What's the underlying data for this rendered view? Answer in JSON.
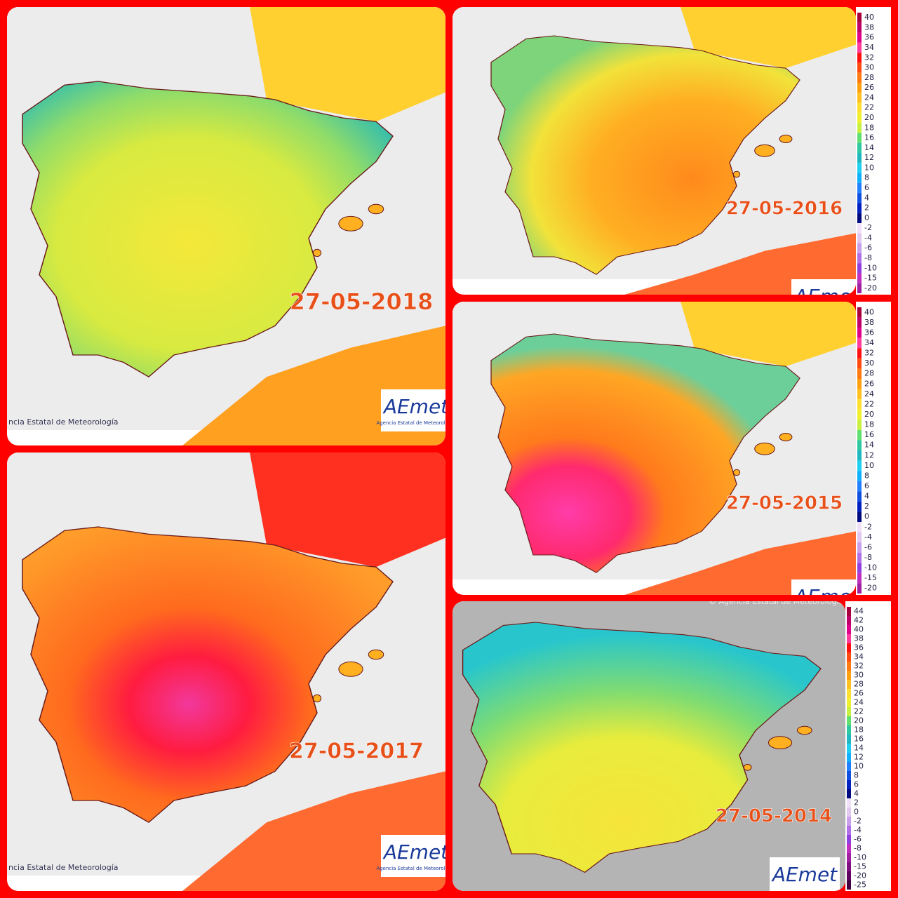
{
  "panels": [
    {
      "date": "27-05-2018",
      "credit": "ncia Estatal de Meteorología",
      "logo": "AEmet",
      "logo_sub": "Agencia Estatal de Meteorología"
    },
    {
      "date": "27-05-2016",
      "logo": "AEmet",
      "legend": [
        40,
        38,
        36,
        34,
        32,
        30,
        28,
        26,
        24,
        22,
        20,
        18,
        16,
        14,
        12,
        10,
        8,
        6,
        4,
        2,
        0,
        -2,
        -4,
        -6,
        -8,
        -10,
        -15,
        -20
      ]
    },
    {
      "date": "27-05-2015",
      "logo": "AEmet",
      "legend": [
        40,
        38,
        36,
        34,
        32,
        30,
        28,
        26,
        24,
        22,
        20,
        18,
        16,
        14,
        12,
        10,
        8,
        6,
        4,
        2,
        0,
        -2,
        -4,
        -6,
        -8,
        -10,
        -15,
        -20
      ]
    },
    {
      "date": "27-05-2017",
      "credit": "ncia Estatal de Meteorología",
      "logo": "AEmet",
      "logo_sub": "Agencia Estatal de Meteorología"
    },
    {
      "date": "27-05-2014",
      "credit": "© Agencia Estatal de Meteorología",
      "logo": "AEmet",
      "legend": [
        44,
        42,
        40,
        38,
        36,
        34,
        32,
        30,
        28,
        26,
        24,
        22,
        20,
        18,
        16,
        14,
        12,
        10,
        8,
        6,
        4,
        2,
        0,
        -2,
        -4,
        -6,
        -8,
        -10,
        -15,
        -20,
        -25
      ]
    }
  ]
}
